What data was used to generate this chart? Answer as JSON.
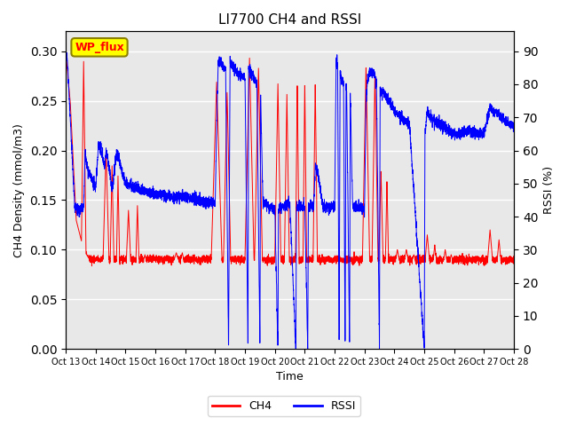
{
  "title": "LI7700 CH4 and RSSI",
  "xlabel": "Time",
  "ylabel_left": "CH4 Density (mmol/m3)",
  "ylabel_right": "RSSI (%)",
  "ylim_left": [
    0.0,
    0.32
  ],
  "ylim_right": [
    0,
    96
  ],
  "yticks_left": [
    0.0,
    0.05,
    0.1,
    0.15,
    0.2,
    0.25,
    0.3
  ],
  "yticks_right": [
    0,
    10,
    20,
    30,
    40,
    50,
    60,
    70,
    80,
    90
  ],
  "xtick_labels": [
    "Oct 13",
    "Oct 14",
    "Oct 15",
    "Oct 16",
    "Oct 17",
    "Oct 18",
    "Oct 19",
    "Oct 20",
    "Oct 21",
    "Oct 22",
    "Oct 23",
    "Oct 24",
    "Oct 25",
    "Oct 26",
    "Oct 27",
    "Oct 28"
  ],
  "annotation_text": "WP_flux",
  "ch4_color": "#ff0000",
  "rssi_color": "#0000ff",
  "plot_bg_color": "#e8e8e8",
  "grid_color": "#ffffff",
  "title_fontsize": 11
}
